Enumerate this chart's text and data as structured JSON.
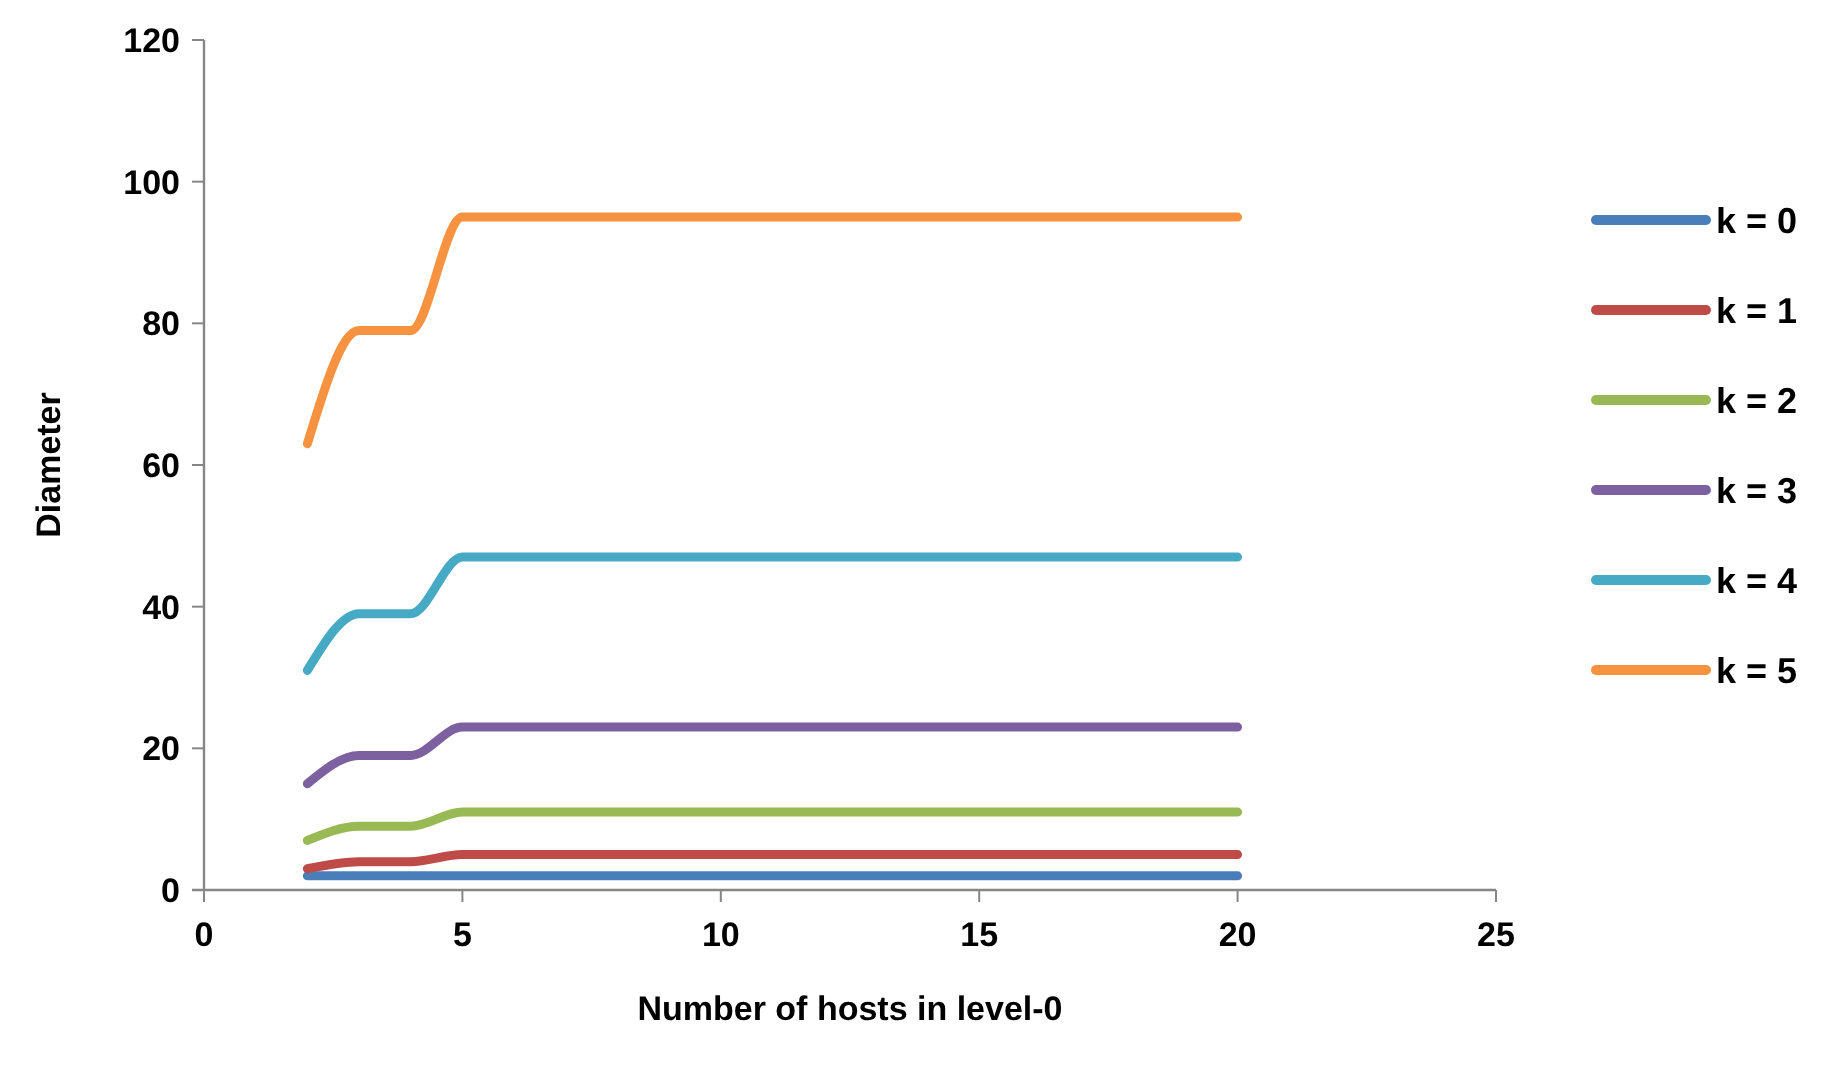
{
  "chart_data": {
    "type": "line",
    "xlabel": "Number of hosts in level-0",
    "ylabel": "Diameter",
    "x": [
      2,
      3,
      4,
      5,
      6,
      7,
      8,
      9,
      10,
      11,
      12,
      13,
      14,
      15,
      16,
      17,
      18,
      19,
      20
    ],
    "xlim": [
      0,
      25
    ],
    "xticks": [
      0,
      5,
      10,
      15,
      20,
      25
    ],
    "ylim": [
      0,
      120
    ],
    "yticks": [
      0,
      20,
      40,
      60,
      80,
      100,
      120
    ],
    "grid": false,
    "legend": "right",
    "marker": "none",
    "line_style": "solid",
    "series": [
      {
        "name": "k = 0",
        "color": "#4a7ebb",
        "values": [
          2,
          2,
          2,
          2,
          2,
          2,
          2,
          2,
          2,
          2,
          2,
          2,
          2,
          2,
          2,
          2,
          2,
          2,
          2
        ]
      },
      {
        "name": "k = 1",
        "color": "#be4b48",
        "values": [
          3,
          4,
          4,
          5,
          5,
          5,
          5,
          5,
          5,
          5,
          5,
          5,
          5,
          5,
          5,
          5,
          5,
          5,
          5
        ]
      },
      {
        "name": "k = 2",
        "color": "#98b954",
        "values": [
          7,
          9,
          9,
          11,
          11,
          11,
          11,
          11,
          11,
          11,
          11,
          11,
          11,
          11,
          11,
          11,
          11,
          11,
          11
        ]
      },
      {
        "name": "k = 3",
        "color": "#7d60a0",
        "values": [
          15,
          19,
          19,
          23,
          23,
          23,
          23,
          23,
          23,
          23,
          23,
          23,
          23,
          23,
          23,
          23,
          23,
          23,
          23
        ]
      },
      {
        "name": "k = 4",
        "color": "#46aac5",
        "values": [
          31,
          39,
          39,
          47,
          47,
          47,
          47,
          47,
          47,
          47,
          47,
          47,
          47,
          47,
          47,
          47,
          47,
          47,
          47
        ]
      },
      {
        "name": "k = 5",
        "color": "#f69240",
        "values": [
          63,
          79,
          79,
          95,
          95,
          95,
          95,
          95,
          95,
          95,
          95,
          95,
          95,
          95,
          95,
          95,
          95,
          95,
          95
        ]
      }
    ]
  }
}
